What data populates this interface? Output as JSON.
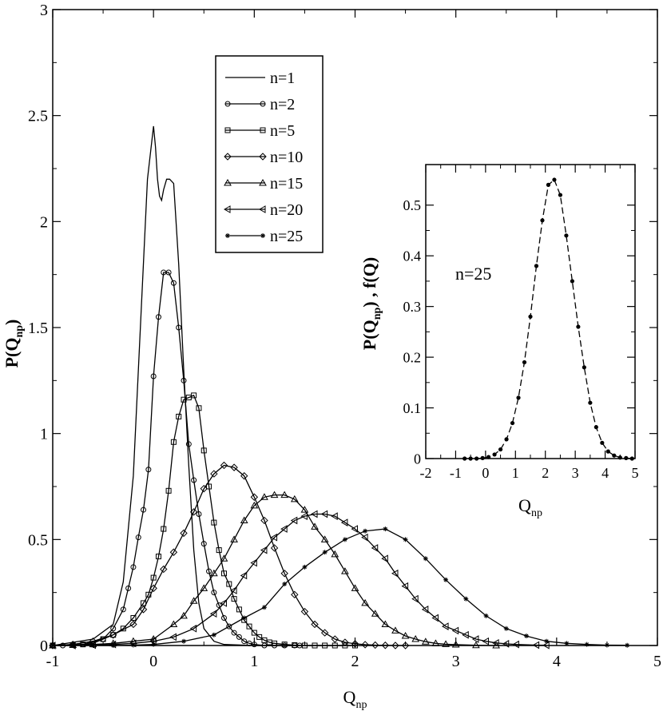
{
  "chart_data": [
    {
      "type": "line",
      "xlabel": "Q",
      "xlabel_sub": "np",
      "ylabel": "P(Q",
      "ylabel_sub": "np",
      "ylabel_tail": ")",
      "xlim": [
        -1,
        5
      ],
      "ylim": [
        0,
        3
      ],
      "xticks": [
        "-1",
        "0",
        "1",
        "2",
        "3",
        "4",
        "5"
      ],
      "yticks": [
        "0",
        "0.5",
        "1",
        "1.5",
        "2",
        "2.5",
        "3"
      ],
      "grid": false,
      "legend_position": "top-center",
      "series": [
        {
          "name": "n=1",
          "marker": "none",
          "x": [
            -1.0,
            -0.6,
            -0.4,
            -0.3,
            -0.2,
            -0.12,
            -0.06,
            0.0,
            0.02,
            0.04,
            0.06,
            0.08,
            0.1,
            0.13,
            0.16,
            0.2,
            0.25,
            0.3,
            0.35,
            0.4,
            0.45,
            0.5,
            0.6,
            0.7,
            1.0,
            2.0
          ],
          "y": [
            0,
            0.03,
            0.1,
            0.3,
            0.8,
            1.6,
            2.2,
            2.45,
            2.35,
            2.2,
            2.12,
            2.1,
            2.15,
            2.2,
            2.2,
            2.18,
            1.8,
            1.3,
            0.85,
            0.45,
            0.2,
            0.08,
            0.02,
            0.005,
            0,
            0
          ]
        },
        {
          "name": "n=2",
          "marker": "circle",
          "x": [
            -1.0,
            -0.9,
            -0.8,
            -0.7,
            -0.6,
            -0.5,
            -0.4,
            -0.3,
            -0.25,
            -0.2,
            -0.15,
            -0.1,
            -0.05,
            0.0,
            0.05,
            0.1,
            0.15,
            0.2,
            0.25,
            0.3,
            0.35,
            0.4,
            0.45,
            0.5,
            0.55,
            0.6,
            0.65,
            0.7,
            0.75,
            0.8,
            0.85,
            0.9,
            0.95,
            1.0,
            1.1,
            1.2,
            1.3,
            1.4,
            1.45
          ],
          "y": [
            0,
            0,
            0.002,
            0.005,
            0.01,
            0.03,
            0.08,
            0.17,
            0.27,
            0.37,
            0.51,
            0.64,
            0.83,
            1.27,
            1.55,
            1.76,
            1.76,
            1.71,
            1.5,
            1.25,
            0.95,
            0.78,
            0.62,
            0.48,
            0.35,
            0.25,
            0.19,
            0.13,
            0.09,
            0.06,
            0.04,
            0.02,
            0.01,
            0.005,
            0,
            0,
            0,
            0,
            0
          ]
        },
        {
          "name": "n=5",
          "marker": "square",
          "x": [
            -1.0,
            -0.7,
            -0.5,
            -0.4,
            -0.3,
            -0.2,
            -0.1,
            -0.05,
            0.0,
            0.05,
            0.1,
            0.15,
            0.2,
            0.25,
            0.3,
            0.35,
            0.4,
            0.45,
            0.5,
            0.55,
            0.6,
            0.65,
            0.7,
            0.75,
            0.8,
            0.85,
            0.9,
            0.95,
            1.0,
            1.05,
            1.1,
            1.15,
            1.2,
            1.3,
            1.4,
            1.5,
            1.6,
            1.7,
            1.8,
            1.9,
            2.0
          ],
          "y": [
            0,
            0.005,
            0.03,
            0.05,
            0.08,
            0.13,
            0.2,
            0.24,
            0.32,
            0.42,
            0.55,
            0.73,
            0.96,
            1.08,
            1.16,
            1.17,
            1.18,
            1.12,
            0.92,
            0.75,
            0.58,
            0.45,
            0.34,
            0.29,
            0.22,
            0.17,
            0.12,
            0.09,
            0.06,
            0.04,
            0.025,
            0.015,
            0.01,
            0.005,
            0.002,
            0,
            0,
            0,
            0,
            0,
            0
          ]
        },
        {
          "name": "n=10",
          "marker": "diamond",
          "x": [
            -1.0,
            -0.8,
            -0.6,
            -0.4,
            -0.2,
            -0.1,
            0.0,
            0.1,
            0.2,
            0.3,
            0.4,
            0.5,
            0.6,
            0.7,
            0.8,
            0.9,
            1.0,
            1.1,
            1.2,
            1.3,
            1.4,
            1.5,
            1.6,
            1.7,
            1.8,
            1.9,
            2.0,
            2.1,
            2.2,
            2.3,
            2.4,
            2.5
          ],
          "y": [
            0,
            0.005,
            0.02,
            0.05,
            0.1,
            0.17,
            0.27,
            0.36,
            0.44,
            0.53,
            0.63,
            0.74,
            0.81,
            0.85,
            0.84,
            0.8,
            0.7,
            0.59,
            0.46,
            0.34,
            0.24,
            0.16,
            0.1,
            0.06,
            0.03,
            0.015,
            0.008,
            0.004,
            0.002,
            0.001,
            0,
            0
          ]
        },
        {
          "name": "n=15",
          "marker": "triangle-up",
          "x": [
            -1.0,
            -0.8,
            -0.6,
            -0.4,
            -0.2,
            0.0,
            0.2,
            0.3,
            0.4,
            0.5,
            0.6,
            0.7,
            0.8,
            0.9,
            1.0,
            1.1,
            1.2,
            1.3,
            1.4,
            1.5,
            1.6,
            1.7,
            1.8,
            1.9,
            2.0,
            2.1,
            2.2,
            2.3,
            2.4,
            2.5,
            2.6,
            2.7,
            2.8,
            2.9,
            3.0,
            3.2,
            3.4
          ],
          "y": [
            0,
            0.002,
            0.005,
            0.01,
            0.02,
            0.03,
            0.1,
            0.14,
            0.21,
            0.27,
            0.34,
            0.41,
            0.5,
            0.59,
            0.66,
            0.7,
            0.71,
            0.71,
            0.69,
            0.64,
            0.56,
            0.5,
            0.43,
            0.35,
            0.27,
            0.2,
            0.15,
            0.1,
            0.07,
            0.045,
            0.03,
            0.018,
            0.01,
            0.006,
            0.004,
            0.001,
            0
          ]
        },
        {
          "name": "n=20",
          "marker": "triangle-left",
          "x": [
            -1.0,
            -0.8,
            -0.6,
            -0.4,
            -0.2,
            0.0,
            0.2,
            0.4,
            0.6,
            0.7,
            0.8,
            0.9,
            1.0,
            1.1,
            1.2,
            1.3,
            1.4,
            1.5,
            1.6,
            1.7,
            1.8,
            1.9,
            2.0,
            2.1,
            2.2,
            2.3,
            2.4,
            2.5,
            2.6,
            2.7,
            2.8,
            2.9,
            3.0,
            3.1,
            3.2,
            3.3,
            3.4,
            3.5,
            3.6,
            3.8,
            3.9
          ],
          "y": [
            0,
            0,
            0.002,
            0.005,
            0.01,
            0.02,
            0.04,
            0.08,
            0.15,
            0.2,
            0.26,
            0.33,
            0.39,
            0.45,
            0.51,
            0.55,
            0.59,
            0.61,
            0.62,
            0.62,
            0.61,
            0.58,
            0.55,
            0.51,
            0.46,
            0.41,
            0.34,
            0.28,
            0.22,
            0.17,
            0.13,
            0.09,
            0.07,
            0.05,
            0.03,
            0.02,
            0.012,
            0.008,
            0.005,
            0.002,
            0.001
          ]
        },
        {
          "name": "n=25",
          "marker": "star",
          "x": [
            -1.0,
            -0.8,
            -0.6,
            -0.4,
            -0.2,
            0.0,
            0.3,
            0.6,
            0.9,
            1.1,
            1.3,
            1.5,
            1.7,
            1.9,
            2.1,
            2.3,
            2.5,
            2.7,
            2.9,
            3.1,
            3.3,
            3.5,
            3.7,
            3.9,
            4.1,
            4.3,
            4.5,
            4.7
          ],
          "y": [
            0,
            0,
            0,
            0,
            0.002,
            0.005,
            0.02,
            0.05,
            0.13,
            0.18,
            0.29,
            0.37,
            0.44,
            0.5,
            0.54,
            0.55,
            0.5,
            0.41,
            0.31,
            0.22,
            0.14,
            0.08,
            0.045,
            0.02,
            0.01,
            0.005,
            0.002,
            0.001
          ]
        }
      ]
    },
    {
      "type": "line",
      "annotation": "n=25",
      "xlabel": "Q",
      "xlabel_sub": "np",
      "ylabel": "P(Q",
      "ylabel_sub": "np",
      "ylabel_tail": ") , f(Q)",
      "xlim": [
        -2,
        5
      ],
      "ylim": [
        0,
        0.58
      ],
      "xticks": [
        "-2",
        "-1",
        "0",
        "1",
        "2",
        "3",
        "4",
        "5"
      ],
      "yticks": [
        "0",
        "0.1",
        "0.2",
        "0.3",
        "0.4",
        "0.5"
      ],
      "grid": false,
      "series": [
        {
          "marker": "dot",
          "x": [
            -0.7,
            -0.5,
            -0.3,
            -0.1,
            0.1,
            0.3,
            0.5,
            0.7,
            0.9,
            1.1,
            1.3,
            1.5,
            1.7,
            1.9,
            2.1,
            2.3,
            2.5,
            2.7,
            2.9,
            3.1,
            3.3,
            3.5,
            3.7,
            3.9,
            4.1,
            4.3,
            4.5,
            4.7,
            4.9
          ],
          "y": [
            0,
            0,
            0,
            0.001,
            0.003,
            0.008,
            0.018,
            0.038,
            0.07,
            0.12,
            0.19,
            0.28,
            0.38,
            0.47,
            0.54,
            0.55,
            0.52,
            0.44,
            0.35,
            0.26,
            0.18,
            0.11,
            0.062,
            0.031,
            0.014,
            0.006,
            0.002,
            0.001,
            0
          ]
        }
      ]
    }
  ]
}
